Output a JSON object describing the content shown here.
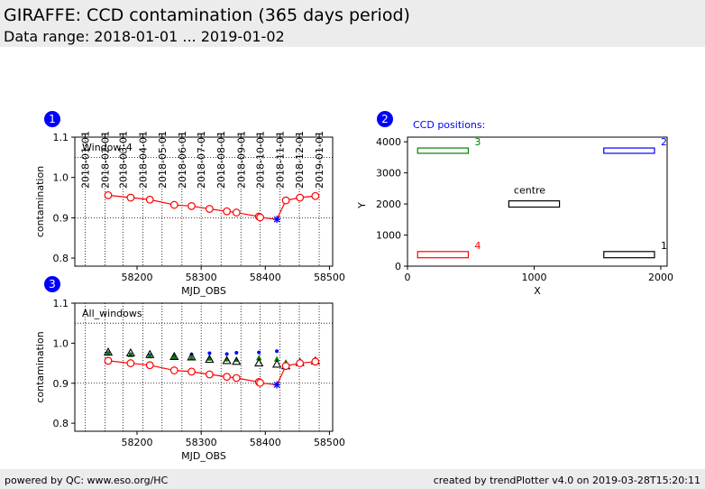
{
  "header": {
    "title": "GIRAFFE: CCD contamination (365 days period)",
    "subtitle": "Data range: 2018-01-01 ... 2019-01-02"
  },
  "footer": {
    "left": "powered by QC: www.eso.org/HC",
    "right": "created by trendPlotter v4.0 on 2019-03-28T15:20:11"
  },
  "colors": {
    "series_red": "#ff0000",
    "latest_star": "#0000ff",
    "win1": "#000000",
    "win2": "#0000ff",
    "win3": "#008000",
    "win4": "#ff0000",
    "badge": "#0000ff",
    "header_bg": "#ececec"
  },
  "chart_data": [
    {
      "id": "1",
      "type": "line",
      "label": "Window_4",
      "xlabel": "MJD_OBS",
      "ylabel": "contamination",
      "xlim": [
        58103,
        58505
      ],
      "ylim": [
        0.78,
        1.1
      ],
      "xticks": [
        58200,
        58300,
        58400,
        58500
      ],
      "yticks": [
        0.8,
        0.9,
        1.0,
        1.1
      ],
      "top_axis_labels": [
        "2018-01-01",
        "2018-02-01",
        "2018-03-01",
        "2018-04-01",
        "2018-05-01",
        "2018-06-01",
        "2018-07-01",
        "2018-08-01",
        "2018-09-01",
        "2018-10-01",
        "2018-11-01",
        "2018-12-01",
        "2019-01-01"
      ],
      "top_axis_mjd": [
        58119,
        58150,
        58178,
        58209,
        58239,
        58270,
        58300,
        58331,
        58362,
        58392,
        58423,
        58453,
        58484
      ],
      "hlines": [
        1.05,
        0.9
      ],
      "series": [
        {
          "x": [
            58155,
            58190,
            58220,
            58258,
            58285,
            58313,
            58340,
            58355,
            58390,
            58392,
            58418,
            58432,
            58454,
            58478
          ],
          "y": [
            0.956,
            0.95,
            0.945,
            0.932,
            0.929,
            0.922,
            0.916,
            0.913,
            0.903,
            0.901,
            0.896,
            0.943,
            0.95,
            0.954
          ]
        }
      ],
      "latest": {
        "x": 58418,
        "y": 0.896
      }
    },
    {
      "id": "3",
      "type": "scatter",
      "label": "All_windows",
      "xlabel": "MJD_OBS",
      "ylabel": "contamination",
      "xlim": [
        58103,
        58505
      ],
      "ylim": [
        0.78,
        1.1
      ],
      "xticks": [
        58200,
        58300,
        58400,
        58500
      ],
      "yticks": [
        0.8,
        0.9,
        1.0,
        1.1
      ],
      "hlines": [
        1.05,
        0.9
      ],
      "series": [
        {
          "window": "4",
          "x": [
            58155,
            58190,
            58220,
            58258,
            58285,
            58313,
            58340,
            58355,
            58390,
            58392,
            58418,
            58432,
            58454,
            58478
          ],
          "y": [
            0.956,
            0.95,
            0.945,
            0.932,
            0.929,
            0.922,
            0.916,
            0.913,
            0.903,
            0.901,
            0.896,
            0.943,
            0.95,
            0.954
          ]
        },
        {
          "window": "1",
          "x": [
            58155,
            58190,
            58220,
            58258,
            58285,
            58313,
            58340,
            58355,
            58390,
            58418,
            58432,
            58454,
            58478
          ],
          "y": [
            0.977,
            0.975,
            0.971,
            0.966,
            0.965,
            0.959,
            0.956,
            0.954,
            0.95,
            0.947,
            0.943,
            0.951,
            0.955
          ]
        },
        {
          "window": "2",
          "x": [
            58155,
            58190,
            58220,
            58258,
            58285,
            58313,
            58340,
            58355,
            58390,
            58418,
            58432,
            58454,
            58478
          ],
          "y": [
            0.975,
            0.972,
            0.97,
            0.968,
            0.972,
            0.975,
            0.973,
            0.976,
            0.977,
            0.98,
            0.948,
            0.953,
            0.958
          ]
        },
        {
          "window": "3",
          "x": [
            58155,
            58190,
            58220,
            58258,
            58285,
            58313,
            58340,
            58355,
            58390,
            58418,
            58432,
            58454,
            58478
          ],
          "y": [
            0.975,
            0.971,
            0.968,
            0.965,
            0.963,
            0.962,
            0.96,
            0.959,
            0.963,
            0.96,
            0.952,
            0.954,
            0.959
          ]
        }
      ],
      "latest": {
        "x": 58418,
        "y": 0.896
      }
    },
    {
      "id": "2",
      "type": "rectangles",
      "title": "CCD positions:",
      "xlabel": "X",
      "ylabel": "Y",
      "xlim": [
        0,
        2050
      ],
      "ylim": [
        0,
        4150
      ],
      "xticks": [
        0,
        1000,
        2000
      ],
      "yticks": [
        0,
        1000,
        2000,
        3000,
        4000
      ],
      "windows": [
        {
          "name": "1",
          "x0": 1550,
          "x1": 1950,
          "y0": 270,
          "y1": 470,
          "color": "#000000"
        },
        {
          "name": "2",
          "x0": 1550,
          "x1": 1950,
          "y0": 3630,
          "y1": 3800,
          "color": "#0000ff"
        },
        {
          "name": "3",
          "x0": 80,
          "x1": 480,
          "y0": 3630,
          "y1": 3800,
          "color": "#008000"
        },
        {
          "name": "4",
          "x0": 80,
          "x1": 480,
          "y0": 270,
          "y1": 470,
          "color": "#ff0000"
        },
        {
          "name": "centre",
          "x0": 800,
          "x1": 1200,
          "y0": 1900,
          "y1": 2100,
          "color": "#000000"
        }
      ]
    }
  ]
}
